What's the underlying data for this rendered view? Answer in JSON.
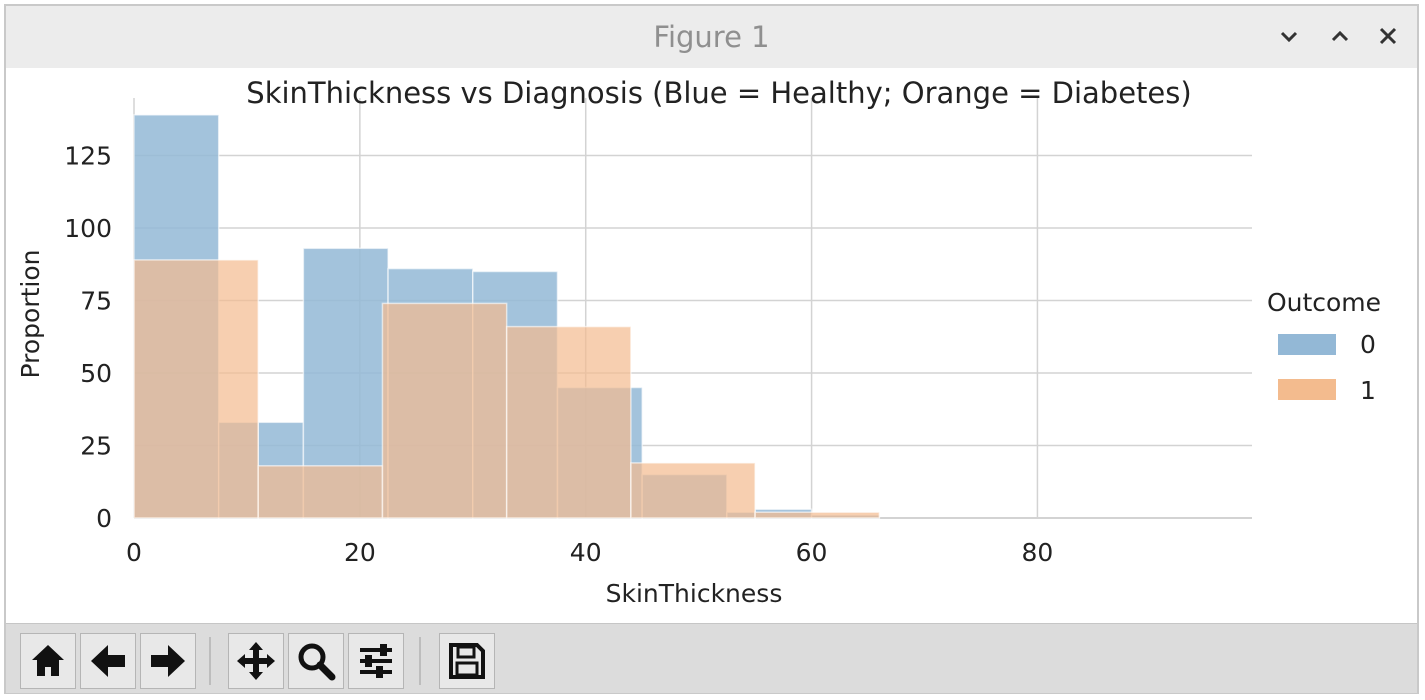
{
  "window": {
    "title": "Figure 1"
  },
  "icons": {
    "minimize": "chevron-down-icon",
    "maximize": "chevron-up-icon",
    "close": "close-icon",
    "home": "home-icon",
    "back": "arrow-left-icon",
    "forward": "arrow-right-icon",
    "pan": "move-icon",
    "zoom": "search-icon",
    "configure": "sliders-icon",
    "save": "save-icon"
  },
  "colors": {
    "healthy": "#93b8d6",
    "diabetes": "#f3bb8e",
    "overlap": "#c7a98d",
    "grid": "#d3d3d3",
    "axis_text": "#222222"
  },
  "chart_data": {
    "type": "bar",
    "title": "SkinThickness vs Diagnosis (Blue = Healthy; Orange = Diabetes)",
    "xlabel": "SkinThickness",
    "ylabel": "Proportion",
    "xlim": [
      0,
      99
    ],
    "ylim": [
      0,
      140
    ],
    "xticks": [
      0,
      20,
      40,
      60,
      80
    ],
    "yticks": [
      0,
      25,
      50,
      75,
      100,
      125
    ],
    "grid": true,
    "legend": {
      "title": "Outcome",
      "placement": "right",
      "entries": [
        "0",
        "1"
      ]
    },
    "series": [
      {
        "name": "0",
        "bins": [
          {
            "x0": 0,
            "x1": 7.5,
            "value": 139
          },
          {
            "x0": 7.5,
            "x1": 11,
            "value": 33
          },
          {
            "x0": 11,
            "x1": 15,
            "value": 33
          },
          {
            "x0": 15,
            "x1": 22.5,
            "value": 93
          },
          {
            "x0": 22.5,
            "x1": 30,
            "value": 86
          },
          {
            "x0": 30,
            "x1": 37.5,
            "value": 85
          },
          {
            "x0": 37.5,
            "x1": 45,
            "value": 45
          },
          {
            "x0": 45,
            "x1": 52.5,
            "value": 15
          },
          {
            "x0": 52.5,
            "x1": 55,
            "value": 2
          },
          {
            "x0": 55,
            "x1": 60,
            "value": 3
          },
          {
            "x0": 60,
            "x1": 66,
            "value": 1
          }
        ]
      },
      {
        "name": "1",
        "bins": [
          {
            "x0": 0,
            "x1": 11,
            "value": 89
          },
          {
            "x0": 11,
            "x1": 22,
            "value": 18
          },
          {
            "x0": 22,
            "x1": 33,
            "value": 74
          },
          {
            "x0": 33,
            "x1": 44,
            "value": 66
          },
          {
            "x0": 44,
            "x1": 55,
            "value": 19
          },
          {
            "x0": 55,
            "x1": 66,
            "value": 2
          }
        ]
      }
    ]
  }
}
